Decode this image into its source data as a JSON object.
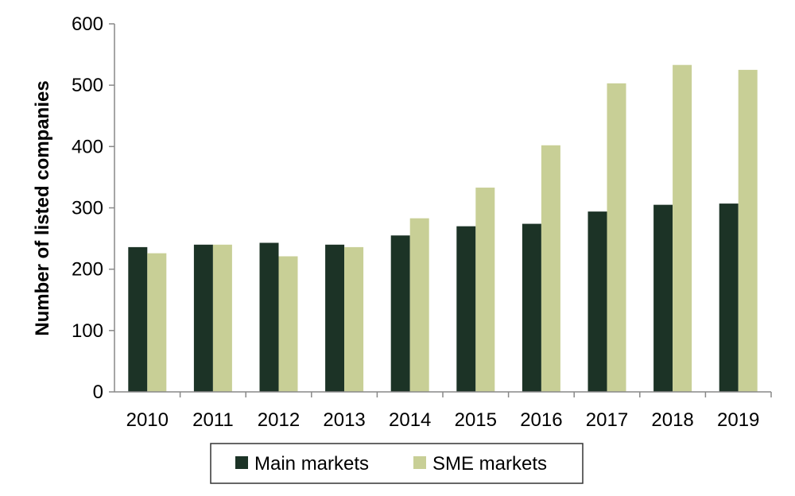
{
  "chart_data": {
    "type": "bar",
    "title": "",
    "xlabel": "",
    "ylabel": "Number of listed companies",
    "ylim": [
      0,
      600
    ],
    "yticks": [
      0,
      100,
      200,
      300,
      400,
      500,
      600
    ],
    "grid": false,
    "legend_position": "bottom",
    "categories": [
      "2010",
      "2011",
      "2012",
      "2013",
      "2014",
      "2015",
      "2016",
      "2017",
      "2018",
      "2019"
    ],
    "series": [
      {
        "name": "Main markets",
        "color": "#1c3326",
        "values": [
          236,
          240,
          243,
          240,
          255,
          270,
          274,
          294,
          305,
          307
        ]
      },
      {
        "name": "SME markets",
        "color": "#c8cf96",
        "values": [
          226,
          240,
          221,
          236,
          283,
          333,
          402,
          503,
          533,
          525
        ]
      }
    ]
  }
}
